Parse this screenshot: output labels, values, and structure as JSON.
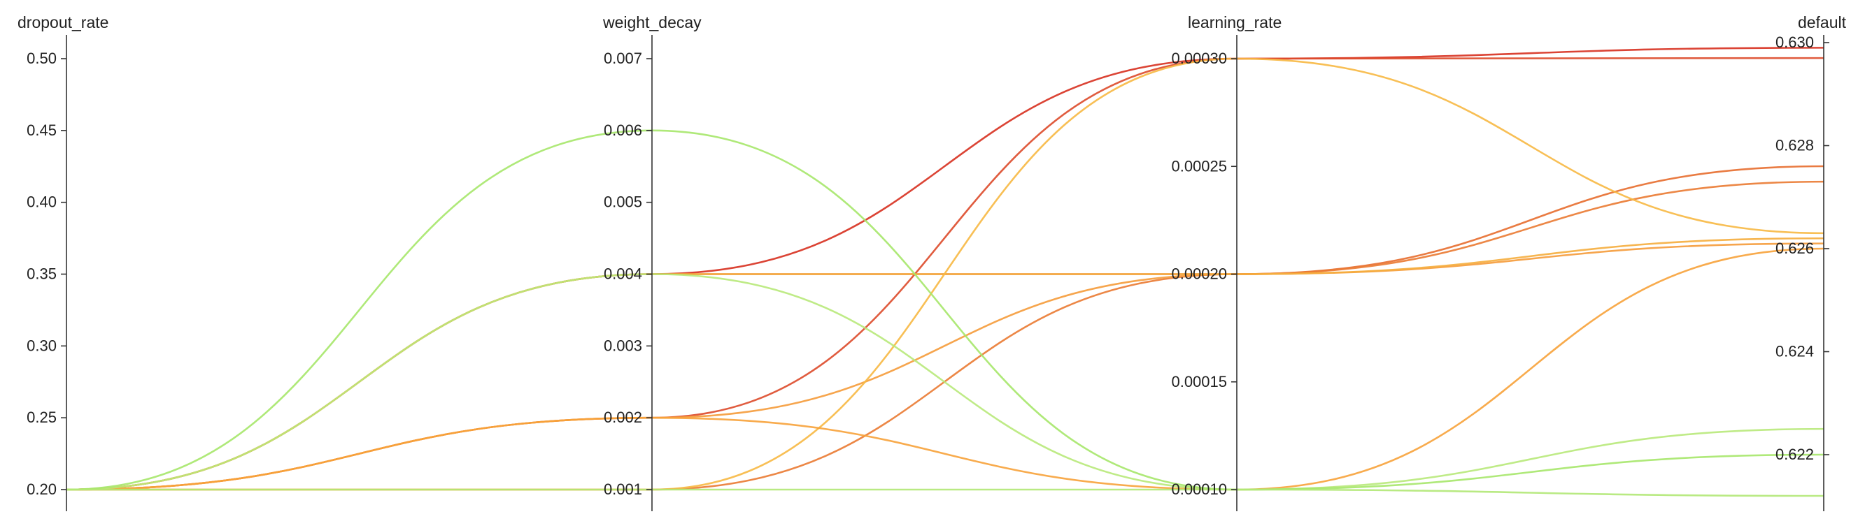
{
  "chart_data": {
    "type": "parallel_coordinates",
    "axes": [
      {
        "key": "dropout_rate",
        "label": "dropout_rate",
        "ticks": [
          "0.20",
          "0.25",
          "0.30",
          "0.35",
          "0.40",
          "0.45",
          "0.50"
        ],
        "range": [
          0.2,
          0.5
        ]
      },
      {
        "key": "weight_decay",
        "label": "weight_decay",
        "ticks": [
          "0.001",
          "0.002",
          "0.003",
          "0.004",
          "0.005",
          "0.006",
          "0.007"
        ],
        "range": [
          0.001,
          0.007
        ]
      },
      {
        "key": "learning_rate",
        "label": "learning_rate",
        "ticks": [
          "0.00010",
          "0.00015",
          "0.00020",
          "0.00025",
          "0.00030"
        ],
        "range": [
          0.0001,
          0.0003
        ]
      },
      {
        "key": "default",
        "label": "default",
        "ticks": [
          "0.622",
          "0.624",
          "0.626",
          "0.628",
          "0.630"
        ],
        "range": [
          0.6212,
          0.63
        ]
      }
    ],
    "color_scale": {
      "low": "#a6e76a",
      "mid": "#f5b13d",
      "high": "#d7301f"
    },
    "lines": [
      {
        "values": [
          0.2,
          0.004,
          0.0003,
          0.6299
        ],
        "color": "#d7301f"
      },
      {
        "values": [
          0.2,
          0.002,
          0.0003,
          0.6297
        ],
        "color": "#dd4a2a"
      },
      {
        "values": [
          0.2,
          0.004,
          0.0002,
          0.6276
        ],
        "color": "#e76d2e"
      },
      {
        "values": [
          0.2,
          0.001,
          0.0002,
          0.6273
        ],
        "color": "#ea7a32"
      },
      {
        "values": [
          0.2,
          0.002,
          0.0002,
          0.6261
        ],
        "color": "#f59b3a"
      },
      {
        "values": [
          0.2,
          0.004,
          0.0002,
          0.6262
        ],
        "color": "#f5ad3d"
      },
      {
        "values": [
          0.2,
          0.001,
          0.0003,
          0.6263
        ],
        "color": "#f7b842"
      },
      {
        "values": [
          0.2,
          0.002,
          0.0001,
          0.626
        ],
        "color": "#f7a23a"
      },
      {
        "values": [
          0.2,
          0.004,
          0.0001,
          0.6225
        ],
        "color": "#b8e97a"
      },
      {
        "values": [
          0.2,
          0.006,
          0.0001,
          0.622
        ],
        "color": "#a6e76a"
      },
      {
        "values": [
          0.2,
          0.001,
          0.0001,
          0.6212
        ],
        "color": "#b1e875"
      }
    ]
  }
}
